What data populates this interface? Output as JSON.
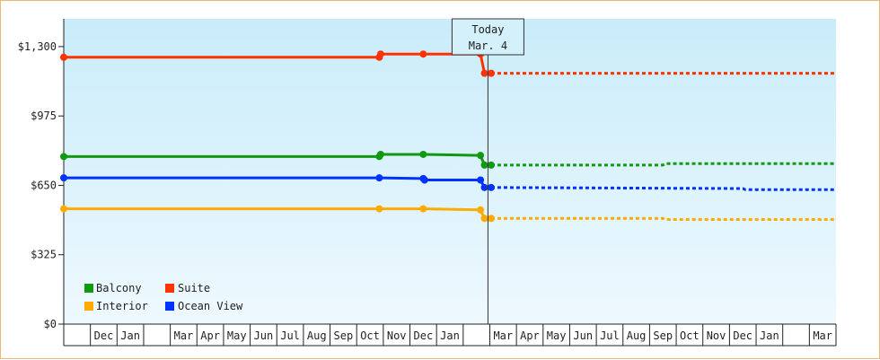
{
  "chart_data": {
    "type": "line",
    "ylim": [
      0,
      1430
    ],
    "yticks": [
      {
        "value": 0,
        "label": "$0"
      },
      {
        "value": 325,
        "label": "$325"
      },
      {
        "value": 650,
        "label": "$650"
      },
      {
        "value": 975,
        "label": "$975"
      },
      {
        "value": 1300,
        "label": "$1,300"
      }
    ],
    "x_months": [
      "",
      "Dec",
      "Jan",
      "",
      "Mar",
      "Apr",
      "May",
      "Jun",
      "Jul",
      "Aug",
      "Sep",
      "Oct",
      "Nov",
      "Dec",
      "Jan",
      "",
      "Mar",
      "Apr",
      "May",
      "Jun",
      "Jul",
      "Aug",
      "Sep",
      "Oct",
      "Nov",
      "Dec",
      "Jan",
      "",
      "Mar"
    ],
    "today": {
      "line1": "Today",
      "line2": "Mar. 4",
      "x": 15.93
    },
    "xlim": [
      0,
      29
    ],
    "legend": [
      {
        "name": "Balcony",
        "color": "#119911"
      },
      {
        "name": "Suite",
        "color": "#ff3300"
      },
      {
        "name": "Interior",
        "color": "#ffaa00"
      },
      {
        "name": "Ocean View",
        "color": "#0033ff"
      }
    ],
    "series": [
      {
        "name": "Suite",
        "color": "#ff3300",
        "history": [
          [
            0,
            1250
          ],
          [
            11.85,
            1250
          ],
          [
            11.9,
            1265
          ],
          [
            13.5,
            1265
          ],
          [
            15.65,
            1265
          ],
          [
            15.8,
            1175
          ],
          [
            16.05,
            1175
          ]
        ],
        "markers": [
          [
            0,
            1250
          ],
          [
            11.85,
            1250
          ],
          [
            11.9,
            1265
          ],
          [
            13.5,
            1265
          ],
          [
            15.65,
            1265
          ],
          [
            15.8,
            1175
          ],
          [
            16.05,
            1175
          ]
        ],
        "forecast": [
          [
            16.05,
            1175
          ],
          [
            29,
            1175
          ]
        ]
      },
      {
        "name": "Balcony",
        "color": "#119911",
        "history": [
          [
            0,
            785
          ],
          [
            11.85,
            785
          ],
          [
            11.9,
            795
          ],
          [
            13.5,
            795
          ],
          [
            15.65,
            790
          ],
          [
            15.8,
            745
          ],
          [
            16.05,
            745
          ]
        ],
        "markers": [
          [
            0,
            785
          ],
          [
            11.85,
            785
          ],
          [
            11.9,
            795
          ],
          [
            13.5,
            795
          ],
          [
            15.65,
            790
          ],
          [
            15.8,
            745
          ],
          [
            16.05,
            745
          ]
        ],
        "forecast": [
          [
            16.05,
            745
          ],
          [
            22.5,
            745
          ],
          [
            22.6,
            752
          ],
          [
            29,
            752
          ]
        ]
      },
      {
        "name": "Ocean View",
        "color": "#0033ff",
        "history": [
          [
            0,
            685
          ],
          [
            11.85,
            685
          ],
          [
            13.5,
            682
          ],
          [
            13.55,
            675
          ],
          [
            15.65,
            675
          ],
          [
            15.8,
            640
          ],
          [
            16.05,
            640
          ]
        ],
        "markers": [
          [
            0,
            685
          ],
          [
            11.85,
            685
          ],
          [
            13.5,
            682
          ],
          [
            13.55,
            675
          ],
          [
            15.65,
            675
          ],
          [
            15.8,
            640
          ],
          [
            16.05,
            640
          ]
        ],
        "forecast": [
          [
            16.05,
            640
          ],
          [
            25.5,
            635
          ],
          [
            25.6,
            630
          ],
          [
            29,
            630
          ]
        ]
      },
      {
        "name": "Interior",
        "color": "#ffaa00",
        "history": [
          [
            0,
            540
          ],
          [
            11.85,
            540
          ],
          [
            13.5,
            540
          ],
          [
            15.65,
            535
          ],
          [
            15.8,
            495
          ],
          [
            16.05,
            495
          ]
        ],
        "markers": [
          [
            0,
            540
          ],
          [
            11.85,
            540
          ],
          [
            13.5,
            540
          ],
          [
            15.65,
            535
          ],
          [
            15.8,
            495
          ],
          [
            16.05,
            495
          ]
        ],
        "forecast": [
          [
            16.05,
            495
          ],
          [
            22.5,
            495
          ],
          [
            22.6,
            490
          ],
          [
            29,
            490
          ]
        ]
      }
    ]
  }
}
